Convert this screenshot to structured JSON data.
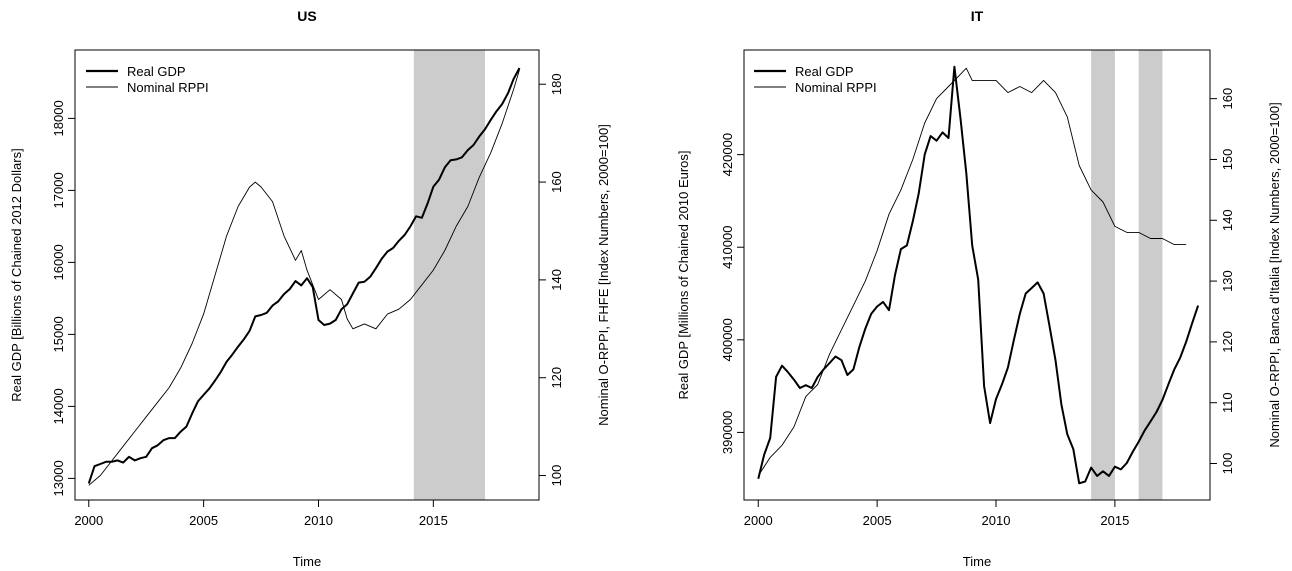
{
  "chart_data": [
    {
      "type": "line",
      "title": "US",
      "xlabel": "Time",
      "ylabel": "Real GDP [Billions of Chained 2012 Dollars]",
      "ylabel2": "Nominal O-RPPI, FHFE [Index Numbers, 2000=100]",
      "xlim": [
        1999.4,
        2019.6
      ],
      "ylim": [
        12700,
        18950
      ],
      "ylim2": [
        95,
        187
      ],
      "x_ticks": [
        2000,
        2005,
        2010,
        2015
      ],
      "y_ticks": [
        13000,
        14000,
        15000,
        16000,
        17000,
        18000
      ],
      "y2_ticks": [
        100,
        120,
        140,
        160,
        180
      ],
      "legend_position": "top-left",
      "shaded_regions": [
        [
          2014.15,
          2017.25
        ]
      ],
      "series": [
        {
          "name": "Real GDP",
          "axis": "left",
          "color": "#000000",
          "points": [
            [
              2000.0,
              12930
            ],
            [
              2000.25,
              13170
            ],
            [
              2000.5,
              13200
            ],
            [
              2000.75,
              13230
            ],
            [
              2001.0,
              13230
            ],
            [
              2001.25,
              13250
            ],
            [
              2001.5,
              13220
            ],
            [
              2001.75,
              13300
            ],
            [
              2002.0,
              13250
            ],
            [
              2002.25,
              13280
            ],
            [
              2002.5,
              13300
            ],
            [
              2002.75,
              13420
            ],
            [
              2003.0,
              13460
            ],
            [
              2003.25,
              13530
            ],
            [
              2003.5,
              13560
            ],
            [
              2003.75,
              13560
            ],
            [
              2004.0,
              13650
            ],
            [
              2004.25,
              13720
            ],
            [
              2004.5,
              13900
            ],
            [
              2004.75,
              14070
            ],
            [
              2005.0,
              14160
            ],
            [
              2005.25,
              14250
            ],
            [
              2005.5,
              14360
            ],
            [
              2005.75,
              14480
            ],
            [
              2006.0,
              14620
            ],
            [
              2006.25,
              14720
            ],
            [
              2006.5,
              14830
            ],
            [
              2006.75,
              14930
            ],
            [
              2007.0,
              15050
            ],
            [
              2007.25,
              15250
            ],
            [
              2007.5,
              15270
            ],
            [
              2007.75,
              15300
            ],
            [
              2008.0,
              15400
            ],
            [
              2008.25,
              15460
            ],
            [
              2008.5,
              15560
            ],
            [
              2008.75,
              15630
            ],
            [
              2009.0,
              15740
            ],
            [
              2009.25,
              15680
            ],
            [
              2009.5,
              15780
            ],
            [
              2009.75,
              15660
            ],
            [
              2010.0,
              15200
            ],
            [
              2010.25,
              15130
            ],
            [
              2010.5,
              15150
            ],
            [
              2010.75,
              15200
            ],
            [
              2011.0,
              15350
            ],
            [
              2011.25,
              15420
            ],
            [
              2011.5,
              15570
            ],
            [
              2011.75,
              15720
            ],
            [
              2012.0,
              15730
            ],
            [
              2012.25,
              15800
            ],
            [
              2012.5,
              15920
            ],
            [
              2012.75,
              16050
            ],
            [
              2013.0,
              16150
            ],
            [
              2013.25,
              16200
            ],
            [
              2013.5,
              16300
            ],
            [
              2013.75,
              16380
            ],
            [
              2014.0,
              16500
            ],
            [
              2014.25,
              16640
            ],
            [
              2014.5,
              16620
            ],
            [
              2014.75,
              16820
            ],
            [
              2015.0,
              17050
            ],
            [
              2015.25,
              17150
            ],
            [
              2015.5,
              17320
            ],
            [
              2015.75,
              17420
            ],
            [
              2016.0,
              17430
            ],
            [
              2016.25,
              17460
            ],
            [
              2016.5,
              17560
            ],
            [
              2016.75,
              17630
            ],
            [
              2017.0,
              17750
            ],
            [
              2017.25,
              17850
            ],
            [
              2017.5,
              17980
            ],
            [
              2017.75,
              18100
            ],
            [
              2018.0,
              18200
            ],
            [
              2018.25,
              18350
            ],
            [
              2018.5,
              18550
            ],
            [
              2018.75,
              18700
            ]
          ]
        },
        {
          "name": "Nominal RPPI",
          "axis": "right",
          "color": "#000000",
          "points": [
            [
              2000.0,
              98
            ],
            [
              2000.5,
              100
            ],
            [
              2001.0,
              103
            ],
            [
              2001.5,
              106
            ],
            [
              2002.0,
              109
            ],
            [
              2002.5,
              112
            ],
            [
              2003.0,
              115
            ],
            [
              2003.5,
              118
            ],
            [
              2004.0,
              122
            ],
            [
              2004.5,
              127
            ],
            [
              2005.0,
              133
            ],
            [
              2005.5,
              141
            ],
            [
              2006.0,
              149
            ],
            [
              2006.5,
              155
            ],
            [
              2007.0,
              159
            ],
            [
              2007.25,
              160
            ],
            [
              2007.5,
              159
            ],
            [
              2008.0,
              156
            ],
            [
              2008.5,
              149
            ],
            [
              2009.0,
              144
            ],
            [
              2009.25,
              146
            ],
            [
              2009.5,
              142
            ],
            [
              2010.0,
              136
            ],
            [
              2010.5,
              138
            ],
            [
              2011.0,
              136
            ],
            [
              2011.25,
              132
            ],
            [
              2011.5,
              130
            ],
            [
              2012.0,
              131
            ],
            [
              2012.5,
              130
            ],
            [
              2013.0,
              133
            ],
            [
              2013.5,
              134
            ],
            [
              2014.0,
              136
            ],
            [
              2014.5,
              139
            ],
            [
              2015.0,
              142
            ],
            [
              2015.5,
              146
            ],
            [
              2016.0,
              151
            ],
            [
              2016.5,
              155
            ],
            [
              2017.0,
              161
            ],
            [
              2017.5,
              166
            ],
            [
              2018.0,
              172
            ],
            [
              2018.5,
              179
            ],
            [
              2018.75,
              183
            ]
          ]
        }
      ]
    },
    {
      "type": "line",
      "title": "IT",
      "xlabel": "Time",
      "ylabel": "Real GDP [Millions of Chained 2010 Euros]",
      "ylabel2": "Nominal O-RPPI, Banca d'Italia [Index Numbers, 2000=100]",
      "xlim": [
        1999.4,
        2019.0
      ],
      "ylim": [
        382700,
        431300
      ],
      "ylim2": [
        94,
        168
      ],
      "x_ticks": [
        2000,
        2005,
        2010,
        2015
      ],
      "y_ticks": [
        390000,
        400000,
        410000,
        420000
      ],
      "y2_ticks": [
        100,
        110,
        120,
        130,
        140,
        150,
        160
      ],
      "legend_position": "top-left",
      "shaded_regions": [
        [
          2014.0,
          2015.0
        ],
        [
          2016.0,
          2017.0
        ]
      ],
      "series": [
        {
          "name": "Real GDP",
          "axis": "left",
          "color": "#000000",
          "points": [
            [
              2000.0,
              385000
            ],
            [
              2000.25,
              387600
            ],
            [
              2000.5,
              389400
            ],
            [
              2000.75,
              396000
            ],
            [
              2001.0,
              397200
            ],
            [
              2001.25,
              396500
            ],
            [
              2001.5,
              395700
            ],
            [
              2001.75,
              394800
            ],
            [
              2002.0,
              395100
            ],
            [
              2002.25,
              394800
            ],
            [
              2002.5,
              396000
            ],
            [
              2002.75,
              396800
            ],
            [
              2003.0,
              397500
            ],
            [
              2003.25,
              398200
            ],
            [
              2003.5,
              397800
            ],
            [
              2003.75,
              396200
            ],
            [
              2004.0,
              396800
            ],
            [
              2004.25,
              399200
            ],
            [
              2004.5,
              401200
            ],
            [
              2004.75,
              402800
            ],
            [
              2005.0,
              403600
            ],
            [
              2005.25,
              404100
            ],
            [
              2005.5,
              403200
            ],
            [
              2005.75,
              407000
            ],
            [
              2006.0,
              409800
            ],
            [
              2006.25,
              410200
            ],
            [
              2006.5,
              412800
            ],
            [
              2006.75,
              415800
            ],
            [
              2007.0,
              420000
            ],
            [
              2007.25,
              422000
            ],
            [
              2007.5,
              421500
            ],
            [
              2007.75,
              422400
            ],
            [
              2008.0,
              421800
            ],
            [
              2008.25,
              429500
            ],
            [
              2008.5,
              424000
            ],
            [
              2008.75,
              418000
            ],
            [
              2009.0,
              410200
            ],
            [
              2009.25,
              406500
            ],
            [
              2009.5,
              395000
            ],
            [
              2009.75,
              391000
            ],
            [
              2010.0,
              393600
            ],
            [
              2010.25,
              395200
            ],
            [
              2010.5,
              397000
            ],
            [
              2010.75,
              400000
            ],
            [
              2011.0,
              402800
            ],
            [
              2011.25,
              405000
            ],
            [
              2011.5,
              405600
            ],
            [
              2011.75,
              406200
            ],
            [
              2012.0,
              405000
            ],
            [
              2012.25,
              401500
            ],
            [
              2012.5,
              397800
            ],
            [
              2012.75,
              393000
            ],
            [
              2013.0,
              389800
            ],
            [
              2013.25,
              388200
            ],
            [
              2013.5,
              384500
            ],
            [
              2013.75,
              384700
            ],
            [
              2014.0,
              386200
            ],
            [
              2014.25,
              385300
            ],
            [
              2014.5,
              385800
            ],
            [
              2014.75,
              385300
            ],
            [
              2015.0,
              386300
            ],
            [
              2015.25,
              386000
            ],
            [
              2015.5,
              386700
            ],
            [
              2015.75,
              387900
            ],
            [
              2016.0,
              389000
            ],
            [
              2016.25,
              390200
            ],
            [
              2016.5,
              391200
            ],
            [
              2016.75,
              392200
            ],
            [
              2017.0,
              393500
            ],
            [
              2017.25,
              395200
            ],
            [
              2017.5,
              396800
            ],
            [
              2017.75,
              398100
            ],
            [
              2018.0,
              399800
            ],
            [
              2018.25,
              401800
            ],
            [
              2018.5,
              403700
            ]
          ]
        },
        {
          "name": "Nominal RPPI",
          "axis": "right",
          "color": "#000000",
          "points": [
            [
              2000.0,
              98
            ],
            [
              2000.5,
              101
            ],
            [
              2001.0,
              103
            ],
            [
              2001.5,
              106
            ],
            [
              2002.0,
              111
            ],
            [
              2002.5,
              113
            ],
            [
              2003.0,
              118
            ],
            [
              2003.5,
              122
            ],
            [
              2004.0,
              126
            ],
            [
              2004.5,
              130
            ],
            [
              2005.0,
              135
            ],
            [
              2005.5,
              141
            ],
            [
              2006.0,
              145
            ],
            [
              2006.5,
              150
            ],
            [
              2007.0,
              156
            ],
            [
              2007.5,
              160
            ],
            [
              2008.0,
              162
            ],
            [
              2008.5,
              164
            ],
            [
              2008.75,
              165
            ],
            [
              2009.0,
              163
            ],
            [
              2009.5,
              163
            ],
            [
              2010.0,
              163
            ],
            [
              2010.5,
              161
            ],
            [
              2011.0,
              162
            ],
            [
              2011.5,
              161
            ],
            [
              2012.0,
              163
            ],
            [
              2012.5,
              161
            ],
            [
              2013.0,
              157
            ],
            [
              2013.5,
              149
            ],
            [
              2014.0,
              145
            ],
            [
              2014.5,
              143
            ],
            [
              2015.0,
              139
            ],
            [
              2015.5,
              138
            ],
            [
              2016.0,
              138
            ],
            [
              2016.5,
              137
            ],
            [
              2017.0,
              137
            ],
            [
              2017.5,
              136
            ],
            [
              2018.0,
              136
            ]
          ]
        }
      ]
    }
  ]
}
